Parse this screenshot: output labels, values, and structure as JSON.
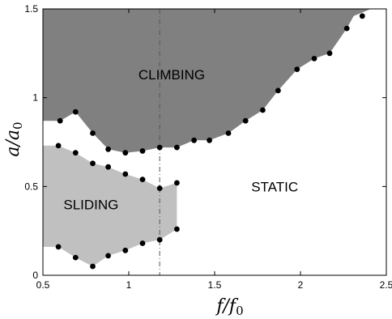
{
  "chart_data": {
    "type": "scatter",
    "xlabel": "f/f0",
    "ylabel": "a/a0",
    "xlim": [
      0.5,
      2.5
    ],
    "ylim": [
      0,
      1.5
    ],
    "xticks": [
      "0.5",
      "1",
      "1.5",
      "2",
      "2.5"
    ],
    "yticks": [
      "0",
      "0.5",
      "1",
      "1.5"
    ],
    "grid": false,
    "vertical_line_x": 1.18,
    "colors": {
      "climbing": "#808080",
      "sliding": "#c0c0c0",
      "points": "#000000",
      "guide": "#555555"
    },
    "regions": [
      {
        "label": "CLIMBING",
        "label_at": [
          1.25,
          1.13
        ],
        "boundary": [
          [
            0.5,
            1.5
          ],
          [
            2.41,
            1.5
          ],
          [
            2.31,
            1.46
          ],
          [
            2.27,
            1.39
          ],
          [
            2.17,
            1.25
          ],
          [
            2.08,
            1.22
          ],
          [
            1.98,
            1.16
          ],
          [
            1.87,
            1.04
          ],
          [
            1.78,
            0.93
          ],
          [
            1.68,
            0.87
          ],
          [
            1.58,
            0.8
          ],
          [
            1.47,
            0.76
          ],
          [
            1.38,
            0.76
          ],
          [
            1.28,
            0.72
          ],
          [
            1.18,
            0.72
          ],
          [
            1.08,
            0.7
          ],
          [
            0.98,
            0.69
          ],
          [
            0.88,
            0.71
          ],
          [
            0.79,
            0.8
          ],
          [
            0.69,
            0.92
          ],
          [
            0.6,
            0.87
          ],
          [
            0.5,
            0.87
          ]
        ]
      },
      {
        "label": "SLIDING",
        "label_at": [
          0.78,
          0.4
        ],
        "boundary": [
          [
            0.5,
            0.73
          ],
          [
            0.59,
            0.73
          ],
          [
            0.69,
            0.69
          ],
          [
            0.79,
            0.63
          ],
          [
            0.88,
            0.61
          ],
          [
            0.98,
            0.57
          ],
          [
            1.08,
            0.54
          ],
          [
            1.18,
            0.49
          ],
          [
            1.28,
            0.52
          ],
          [
            1.28,
            0.26
          ],
          [
            1.18,
            0.2
          ],
          [
            1.08,
            0.18
          ],
          [
            0.98,
            0.14
          ],
          [
            0.88,
            0.11
          ],
          [
            0.79,
            0.05
          ],
          [
            0.69,
            0.1
          ],
          [
            0.59,
            0.16
          ],
          [
            0.5,
            0.16
          ]
        ]
      },
      {
        "label": "STATIC",
        "label_at": [
          1.85,
          0.5
        ]
      }
    ],
    "points": {
      "x": [
        0.6,
        0.69,
        0.79,
        0.88,
        0.98,
        1.08,
        1.18,
        1.28,
        1.38,
        1.47,
        1.58,
        1.68,
        1.78,
        1.87,
        1.98,
        2.08,
        2.17,
        2.27,
        2.36,
        0.59,
        0.69,
        0.79,
        0.88,
        0.98,
        1.08,
        1.18,
        1.28,
        0.59,
        0.69,
        0.79,
        0.88,
        0.98,
        1.08,
        1.18,
        1.28
      ],
      "y": [
        0.87,
        0.92,
        0.8,
        0.71,
        0.69,
        0.7,
        0.72,
        0.72,
        0.76,
        0.76,
        0.8,
        0.87,
        0.93,
        1.04,
        1.16,
        1.22,
        1.25,
        1.39,
        1.46,
        0.73,
        0.69,
        0.63,
        0.61,
        0.57,
        0.54,
        0.49,
        0.52,
        0.16,
        0.1,
        0.05,
        0.11,
        0.14,
        0.18,
        0.2,
        0.26
      ]
    }
  }
}
